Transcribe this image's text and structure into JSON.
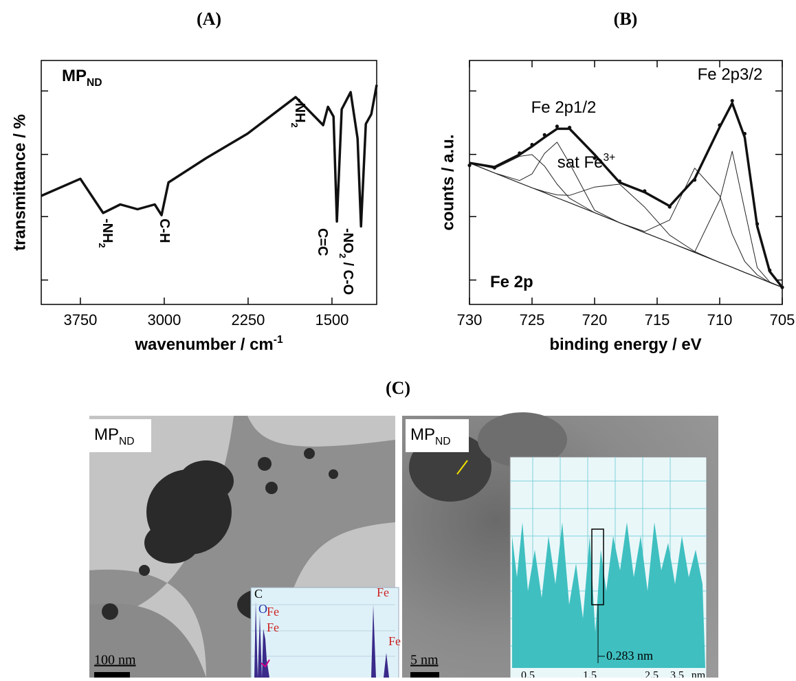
{
  "chart_data": [
    {
      "type": "line",
      "panel": "(A)",
      "label": {
        "text": "MP",
        "subscript": "ND"
      },
      "xlabel": "wavenumber / cm",
      "xlabel_sup": "-1",
      "ylabel": "transmittance / %",
      "xlim": [
        4100,
        1100
      ],
      "xticks": [
        3750,
        3000,
        2250,
        1500
      ],
      "ylim": [
        0,
        100
      ],
      "series": [
        {
          "color": "#111111",
          "x": [
            4100,
            3750,
            3547,
            3393,
            3239,
            3085,
            3024,
            2962,
            2624,
            2255,
            1825,
            1579,
            1536,
            1486,
            1456,
            1413,
            1333,
            1271,
            1240,
            1197,
            1148,
            1100
          ],
          "values": [
            44.5,
            51.5,
            37.5,
            41,
            39,
            41,
            36.6,
            50,
            60,
            70,
            85,
            73.5,
            81,
            77,
            34,
            80,
            87,
            68,
            32,
            74,
            78,
            90
          ]
        }
      ],
      "annotations": [
        {
          "text": "-NH",
          "sub": "2"
        },
        {
          "text": "C-H"
        },
        {
          "text": "-NH",
          "sub": "2"
        },
        {
          "text": "C=C"
        },
        {
          "text": "-NO",
          "sub": "2",
          "after": " / C-O"
        }
      ]
    },
    {
      "type": "line",
      "panel": "(B)",
      "label": {
        "text": "Fe 2p"
      },
      "xlabel": "binding energy / eV",
      "ylabel": "counts / a.u.",
      "xlim": [
        730,
        705
      ],
      "xticks": [
        730,
        725,
        720,
        715,
        710,
        705
      ],
      "ylim": [
        0,
        100
      ],
      "x": [
        730,
        728,
        726,
        725,
        724,
        723,
        722,
        720,
        718,
        716,
        714,
        712,
        710,
        709,
        708,
        707,
        706,
        705
      ],
      "series": [
        {
          "color": "#222222",
          "values": [
            58,
            53.9,
            50.8,
            53.5,
            61.9,
            66.5,
            57.8,
            38.6,
            33.5,
            29.4,
            25.4,
            21.3,
            17.2,
            15.2,
            13.1,
            11.1,
            9,
            7
          ]
        },
        {
          "color": "#222222",
          "values": [
            58,
            55.7,
            60.7,
            61.4,
            56.7,
            49.3,
            43.5,
            37.6,
            33.5,
            29.4,
            25.4,
            21.3,
            17.2,
            15.2,
            13.1,
            11.1,
            9,
            7
          ]
        },
        {
          "color": "#222222",
          "values": [
            58,
            53.9,
            49.8,
            47.8,
            46.2,
            44.9,
            44.7,
            48.1,
            49.3,
            39.9,
            28.4,
            21.7,
            17.2,
            15.2,
            13.1,
            11.1,
            9,
            7
          ]
        },
        {
          "color": "#222222",
          "values": [
            58,
            53.9,
            49.8,
            47.8,
            45.8,
            43.7,
            41.7,
            37.6,
            33.5,
            29.9,
            34.6,
            55.9,
            44.5,
            28.8,
            17.6,
            12.1,
            9,
            7
          ]
        },
        {
          "color": "#222222",
          "values": [
            58,
            53.9,
            49.8,
            47.8,
            45.8,
            43.7,
            41.7,
            37.6,
            33.5,
            29.4,
            25.4,
            21.5,
            42.8,
            62.8,
            38.7,
            15.1,
            9.2,
            7
          ]
        },
        {
          "color": "#111111",
          "values": [
            58,
            56.3,
            61.4,
            64.8,
            68.5,
            72,
            72,
            61.4,
            50,
            46,
            40.3,
            51.5,
            72.7,
            82.5,
            68.5,
            32,
            13.5,
            7
          ]
        },
        {
          "color": "#111111",
          "marker": "dot",
          "values": [
            57,
            56,
            62,
            65.5,
            69.5,
            73,
            72.5,
            60,
            50.5,
            46.5,
            40,
            51,
            73.5,
            83.5,
            70,
            33,
            14,
            7
          ]
        }
      ],
      "annotations": [
        {
          "text": "Fe 2p1/2"
        },
        {
          "text": "sat Fe",
          "sup": "3+"
        },
        {
          "text": "Fe 2p3/2"
        }
      ]
    }
  ],
  "figure_c": {
    "panel": "(C)",
    "images": [
      {
        "sample": "MP",
        "subscript": "ND",
        "scale_bar": "100 nm",
        "inset_labels": [
          "C",
          "O",
          "Fe",
          "Fe",
          "Fe",
          "Fe"
        ]
      },
      {
        "sample": "MP",
        "subscript": "ND",
        "scale_bar": "5 nm",
        "inset_annotation": "0.283 nm",
        "inset_ticks": [
          "0.5",
          "1.5",
          "2.5",
          "3.5",
          "nm"
        ]
      }
    ]
  }
}
